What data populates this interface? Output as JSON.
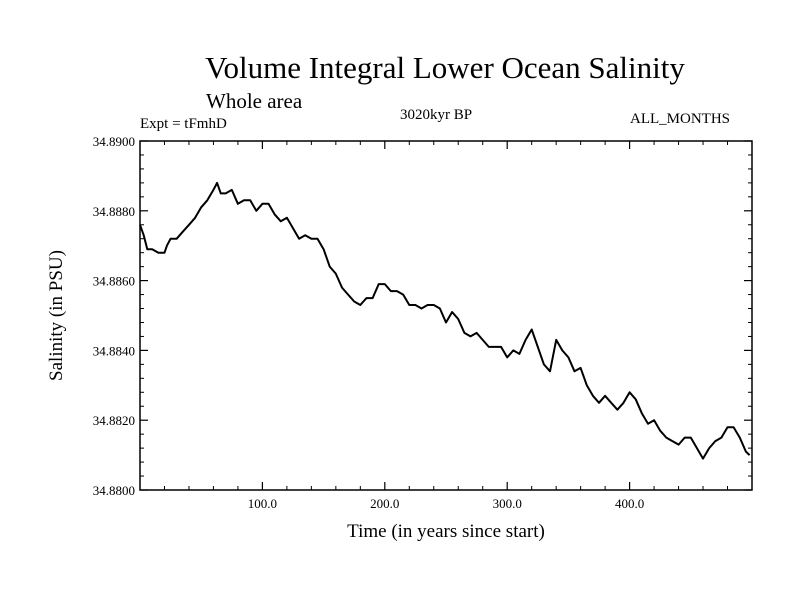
{
  "title": "Volume Integral Lower Ocean Salinity",
  "subtitle": "Whole area",
  "experiment_label": "Expt = tFmhD",
  "period_label": "3020kyr BP",
  "months_label": "ALL_MONTHS",
  "chart_data": {
    "type": "line",
    "title": "Volume Integral Lower Ocean Salinity",
    "xlabel": "Time (in years since start)",
    "ylabel": "Salinity (in PSU)",
    "xlim": [
      0,
      500
    ],
    "ylim": [
      34.88,
      34.89
    ],
    "x_ticks": [
      100,
      200,
      300,
      400
    ],
    "x_tick_labels": [
      "100.0",
      "200.0",
      "300.0",
      "400.0"
    ],
    "y_ticks": [
      34.88,
      34.882,
      34.884,
      34.886,
      34.888,
      34.89
    ],
    "y_tick_labels": [
      "34.8800",
      "34.8820",
      "34.8840",
      "34.8860",
      "34.8880",
      "34.8900"
    ],
    "grid": false,
    "series": [
      {
        "name": "Salinity",
        "x": [
          0,
          3,
          6,
          10,
          15,
          20,
          22,
          25,
          30,
          35,
          40,
          45,
          50,
          55,
          60,
          63,
          66,
          70,
          75,
          80,
          85,
          90,
          95,
          100,
          105,
          110,
          115,
          120,
          125,
          130,
          135,
          140,
          145,
          150,
          155,
          160,
          165,
          170,
          175,
          180,
          185,
          190,
          195,
          200,
          205,
          210,
          215,
          220,
          225,
          230,
          235,
          240,
          245,
          250,
          255,
          260,
          265,
          270,
          275,
          280,
          285,
          290,
          295,
          300,
          305,
          310,
          315,
          320,
          325,
          330,
          335,
          340,
          345,
          350,
          355,
          360,
          365,
          370,
          375,
          380,
          385,
          390,
          395,
          400,
          405,
          410,
          415,
          420,
          425,
          430,
          435,
          440,
          445,
          450,
          455,
          460,
          465,
          470,
          475,
          480,
          485,
          490,
          495,
          498
        ],
        "values": [
          34.8876,
          34.8873,
          34.8869,
          34.8869,
          34.8868,
          34.8868,
          34.887,
          34.8872,
          34.8872,
          34.8874,
          34.8876,
          34.8878,
          34.8881,
          34.8883,
          34.8886,
          34.8888,
          34.8885,
          34.8885,
          34.8886,
          34.8882,
          34.8883,
          34.8883,
          34.888,
          34.8882,
          34.8882,
          34.8879,
          34.8877,
          34.8878,
          34.8875,
          34.8872,
          34.8873,
          34.8872,
          34.8872,
          34.8869,
          34.8864,
          34.8862,
          34.8858,
          34.8856,
          34.8854,
          34.8853,
          34.8855,
          34.8855,
          34.8859,
          34.8859,
          34.8857,
          34.8857,
          34.8856,
          34.8853,
          34.8853,
          34.8852,
          34.8853,
          34.8853,
          34.8852,
          34.8848,
          34.8851,
          34.8849,
          34.8845,
          34.8844,
          34.8845,
          34.8843,
          34.8841,
          34.8841,
          34.8841,
          34.8838,
          34.884,
          34.8839,
          34.8843,
          34.8846,
          34.8841,
          34.8836,
          34.8834,
          34.8843,
          34.884,
          34.8838,
          34.8834,
          34.8835,
          34.883,
          34.8827,
          34.8825,
          34.8827,
          34.8825,
          34.8823,
          34.8825,
          34.8828,
          34.8826,
          34.8822,
          34.8819,
          34.882,
          34.8817,
          34.8815,
          34.8814,
          34.8813,
          34.8815,
          34.8815,
          34.8812,
          34.8809,
          34.8812,
          34.8814,
          34.8815,
          34.8818,
          34.8818,
          34.8815,
          34.8811,
          34.881
        ]
      }
    ]
  }
}
